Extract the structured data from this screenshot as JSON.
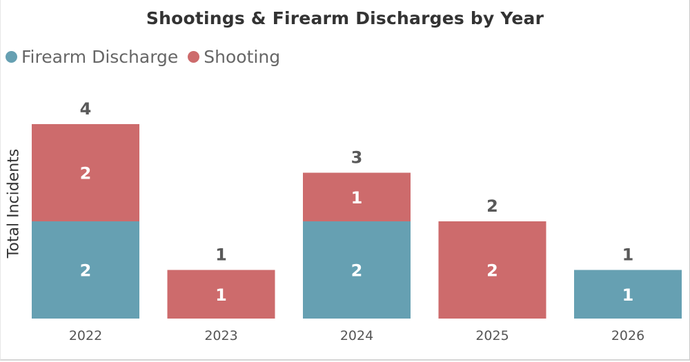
{
  "colors": {
    "firearm_discharge": "#66a0b2",
    "shooting": "#cd6b6c",
    "text_dark": "#333333",
    "total_label": "#595959",
    "segment_label": "#ffffff"
  },
  "chart_data": {
    "type": "bar",
    "stacked": true,
    "title": "Shootings & Firearm Discharges by Year",
    "xlabel": "",
    "ylabel": "Total Incidents",
    "categories": [
      "2022",
      "2023",
      "2024",
      "2025",
      "2026"
    ],
    "series": [
      {
        "name": "Firearm Discharge",
        "values": [
          2,
          0,
          2,
          0,
          1
        ]
      },
      {
        "name": "Shooting",
        "values": [
          2,
          1,
          1,
          2,
          0
        ]
      }
    ],
    "totals": [
      4,
      1,
      3,
      2,
      1
    ],
    "ylim": [
      0,
      4
    ],
    "grid": false,
    "legend_position": "top-left"
  }
}
